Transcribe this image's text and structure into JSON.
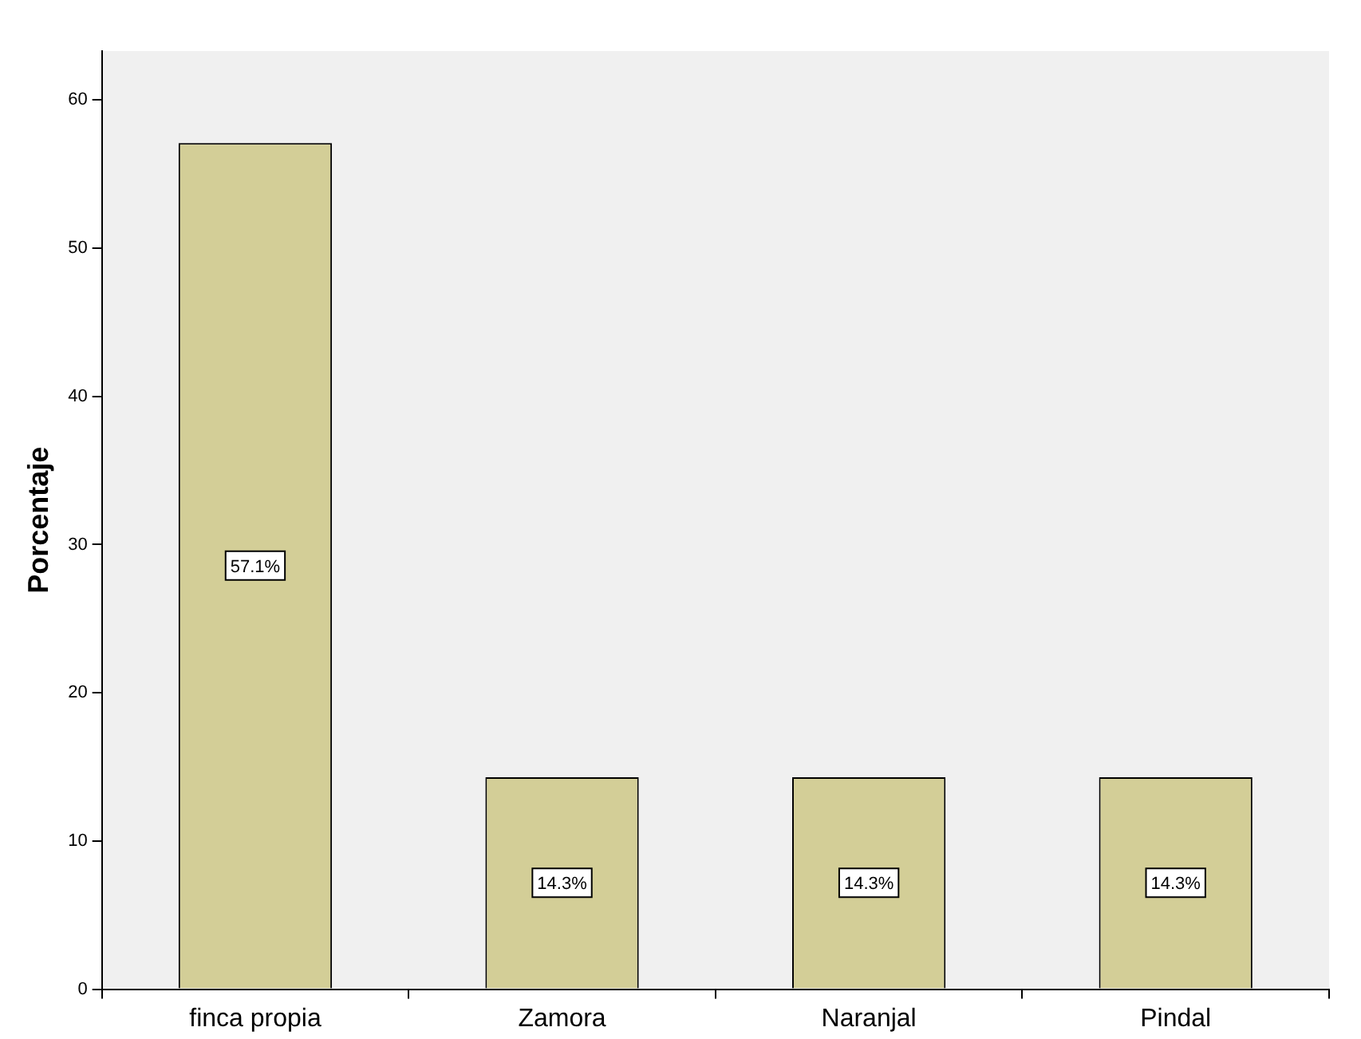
{
  "chart_data": {
    "type": "bar",
    "ylabel": "Porcentaje",
    "categories": [
      "finca propia",
      "Zamora",
      "Naranjal",
      "Pindal"
    ],
    "values": [
      57.1,
      14.3,
      14.3,
      14.3
    ],
    "value_labels": [
      "57.1%",
      "14.3%",
      "14.3%",
      "14.3%"
    ],
    "color": "#d3ce97",
    "ylim": [
      0,
      63.3
    ],
    "yticks": [
      0,
      10,
      20,
      30,
      40,
      50,
      60
    ],
    "grid": false,
    "legend": false
  }
}
